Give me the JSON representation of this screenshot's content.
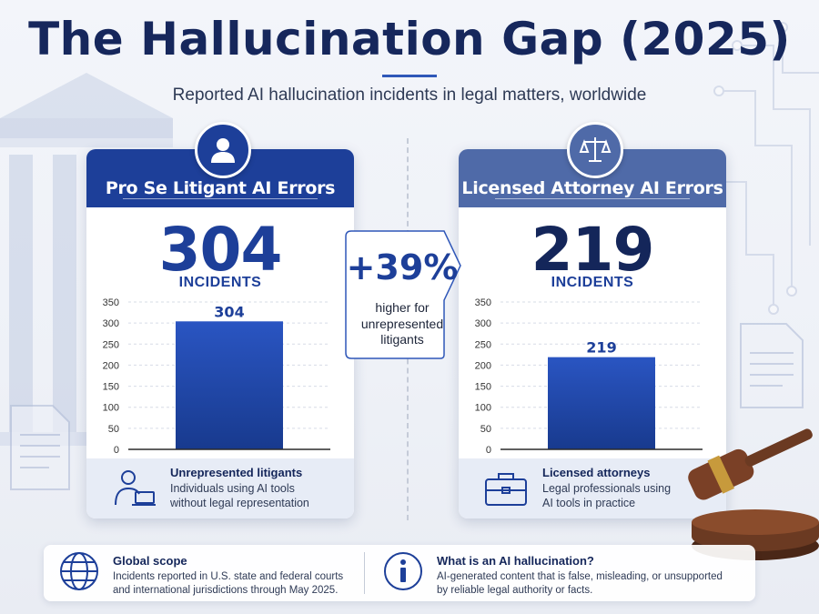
{
  "header": {
    "title": "The Hallucination Gap (2025)",
    "subtitle": "Reported AI hallucination incidents in legal matters, worldwide"
  },
  "cards": [
    {
      "title": "Pro Se Litigant AI Errors",
      "icon": "person-icon",
      "big_number": "304",
      "big_label": "INCIDENTS",
      "footer_icon": "person-laptop-icon",
      "footer_title": "Unrepresented litigants",
      "footer_desc_1": "Individuals using AI tools",
      "footer_desc_2": "without legal representation"
    },
    {
      "title": "Licensed Attorney AI Errors",
      "icon": "scales-icon",
      "big_number": "219",
      "big_label": "INCIDENTS",
      "footer_icon": "briefcase-icon",
      "footer_title": "Licensed attorneys",
      "footer_desc_1": "Legal professionals using",
      "footer_desc_2": "AI tools in practice"
    }
  ],
  "callout": {
    "value": "+39%",
    "text_1": "higher for",
    "text_2": "unrepresented",
    "text_3": "litigants"
  },
  "footer": {
    "scope_icon": "globe-icon",
    "scope_title": "Global scope",
    "scope_desc_1": "Incidents reported in U.S. state and federal courts",
    "scope_desc_2": "and international jurisdictions through May 2025.",
    "info_icon": "info-icon",
    "info_title": "What is an AI hallucination?",
    "info_desc_1": "AI-generated content that is false, misleading, or unsupported",
    "info_desc_2": "by reliable legal authority or facts."
  },
  "colors": {
    "primary": "#1d3f99",
    "secondary": "#4f6aa8",
    "navy": "#14265a"
  },
  "chart_data": [
    {
      "type": "bar",
      "categories": [
        ""
      ],
      "values": [
        304
      ],
      "data_labels": [
        "304"
      ],
      "ylim": [
        0,
        350
      ],
      "yticks": [
        0,
        50,
        100,
        150,
        200,
        250,
        300,
        350
      ],
      "grid": true,
      "color": "#1d3f99"
    },
    {
      "type": "bar",
      "categories": [
        ""
      ],
      "values": [
        219
      ],
      "data_labels": [
        "219"
      ],
      "ylim": [
        0,
        350
      ],
      "yticks": [
        0,
        50,
        100,
        150,
        200,
        250,
        300,
        350
      ],
      "grid": true,
      "color": "#1d3f99"
    }
  ]
}
